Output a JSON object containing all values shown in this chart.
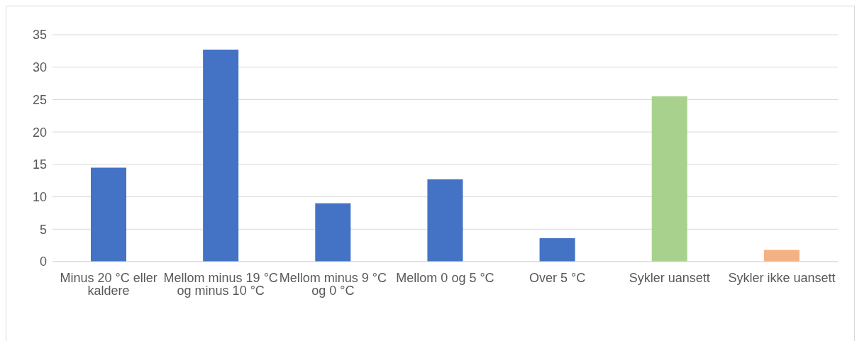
{
  "chart_data": {
    "type": "bar",
    "categories": [
      "Minus 20 °C eller kaldere",
      "Mellom minus 19 °C og minus 10 °C",
      "Mellom minus 9 °C og 0 °C",
      "Mellom 0 og 5 °C",
      "Over 5 °C",
      "Sykler uansett",
      "Sykler ikke uansett"
    ],
    "values": [
      14.5,
      32.7,
      9.0,
      12.7,
      3.6,
      25.5,
      1.8
    ],
    "colors": [
      "#4472c4",
      "#4472c4",
      "#4472c4",
      "#4472c4",
      "#4472c4",
      "#a9d18e",
      "#f4b183"
    ],
    "ylim": [
      0,
      35
    ],
    "yticks": [
      0,
      5,
      10,
      15,
      20,
      25,
      30,
      35
    ],
    "grid": "y",
    "legend": false
  }
}
